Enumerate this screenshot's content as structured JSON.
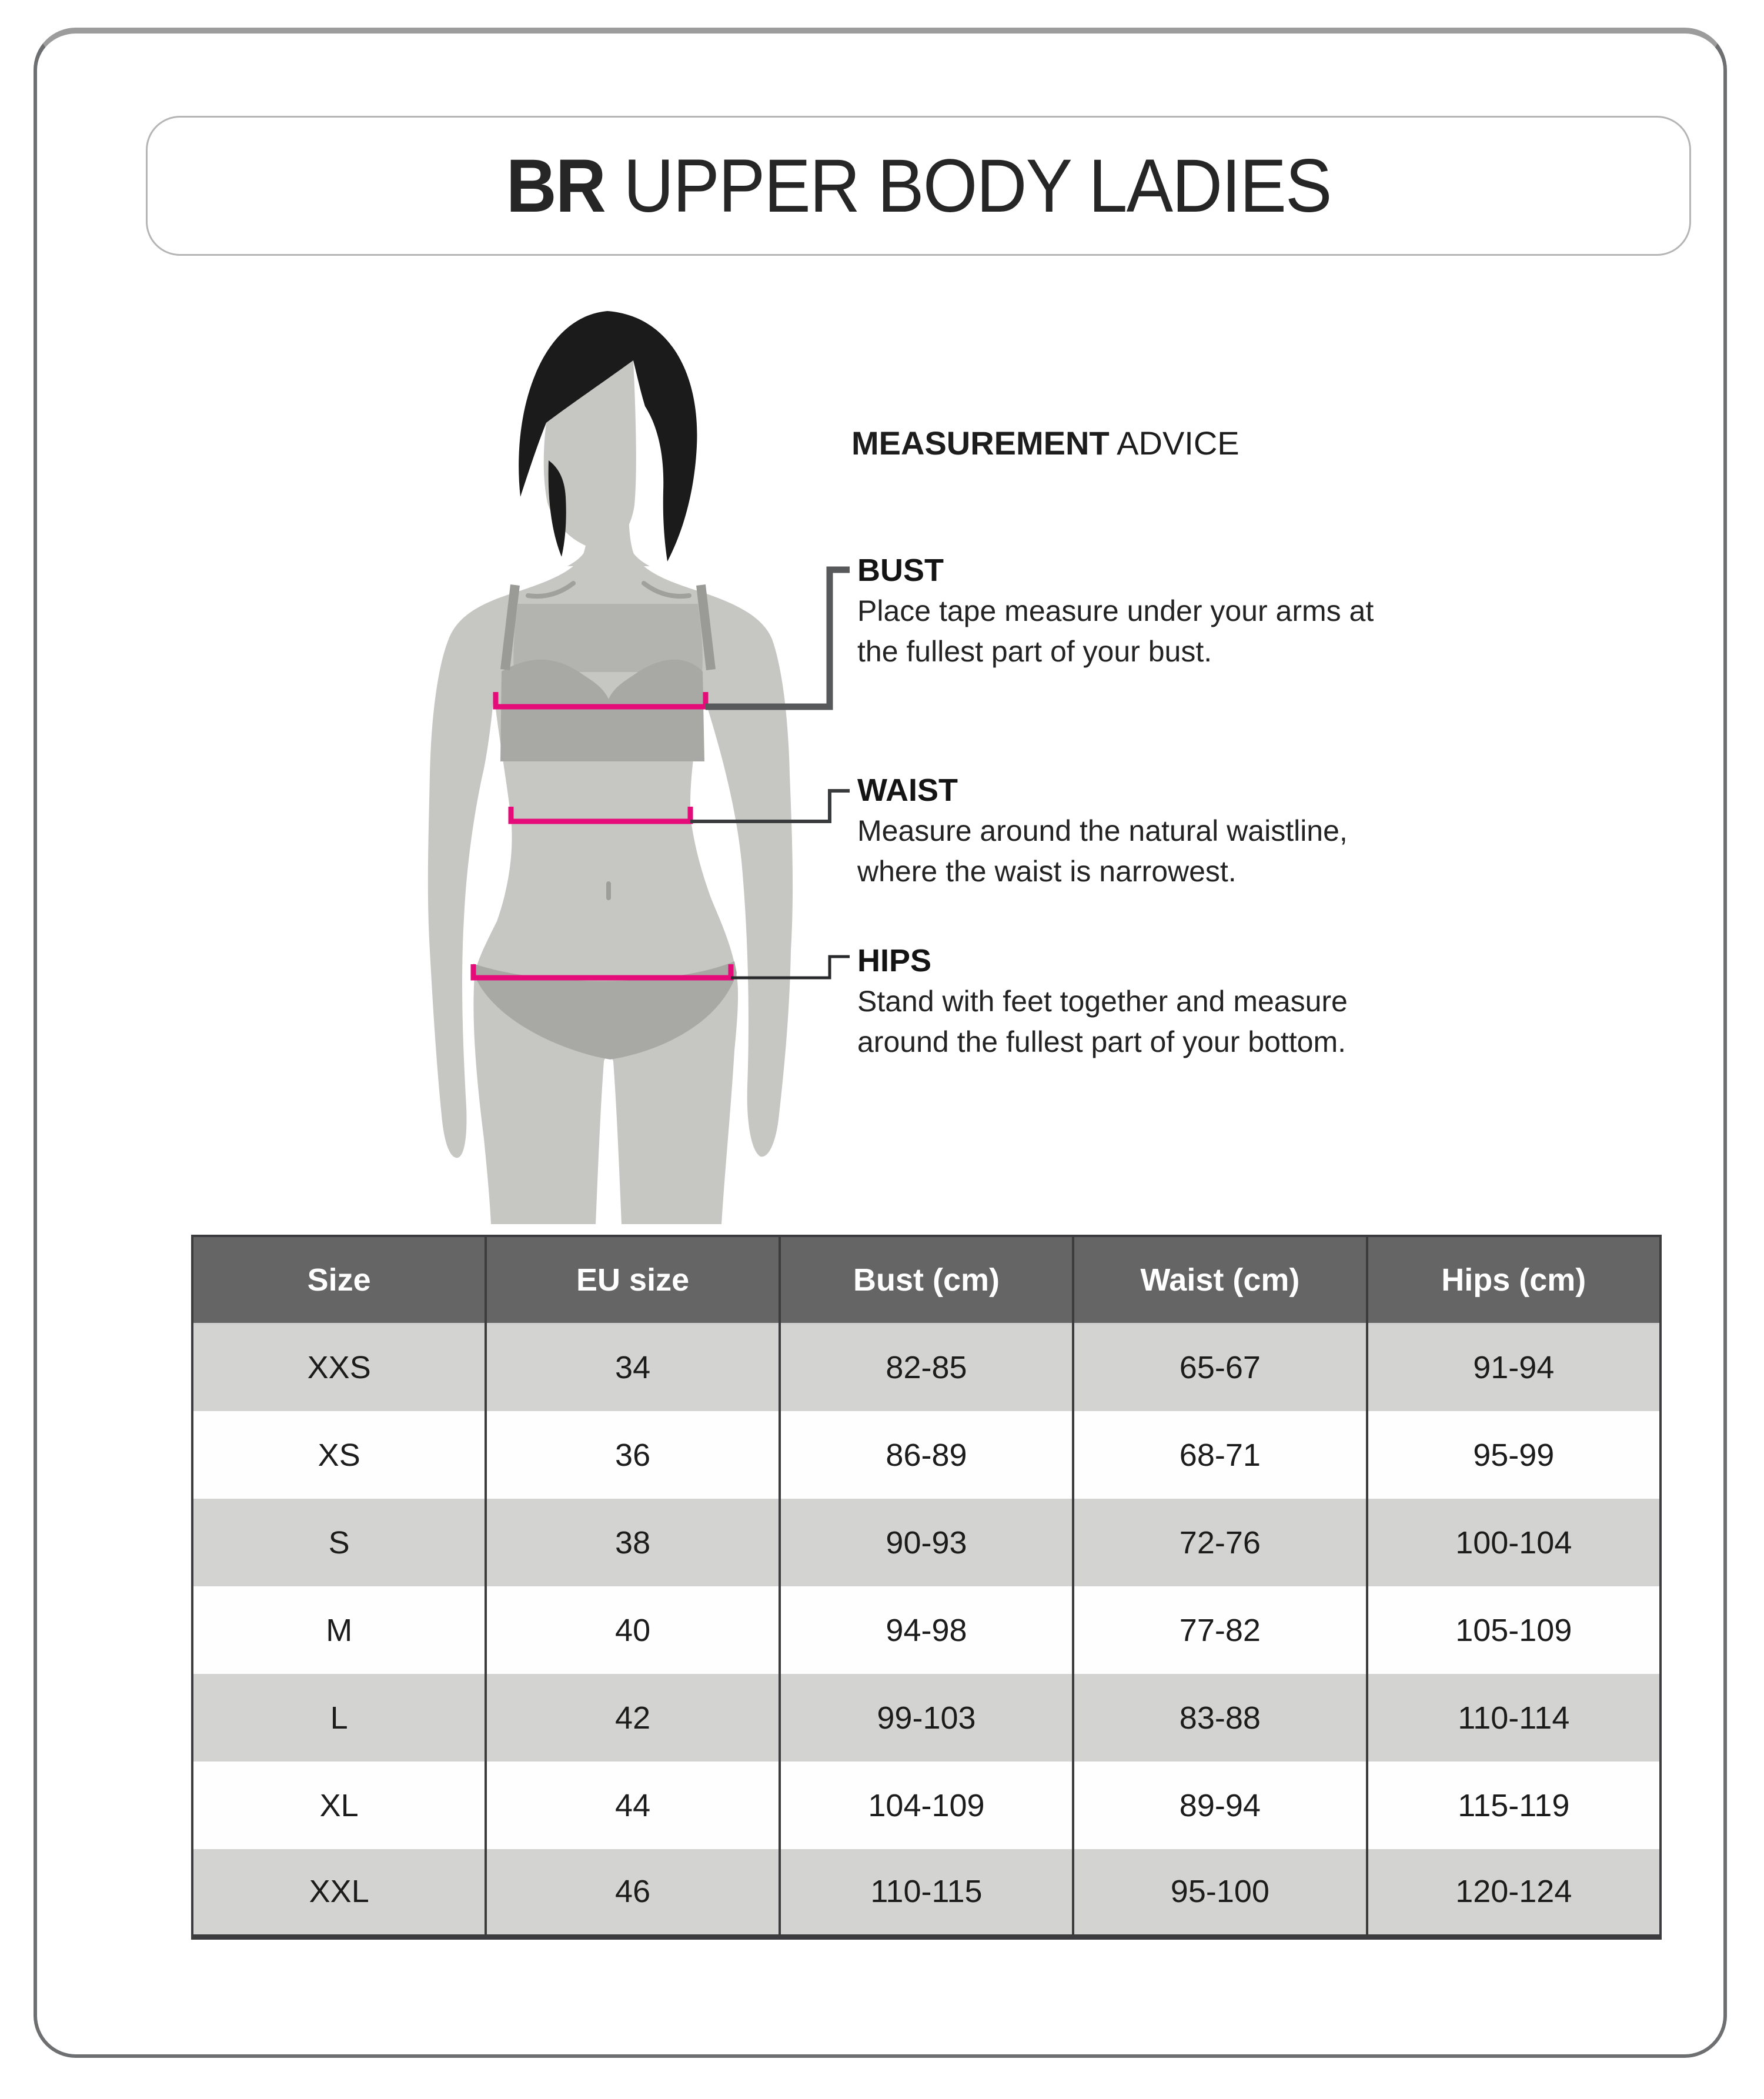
{
  "title": {
    "brand": "BR",
    "rest": " UPPER BODY LADIES"
  },
  "advice_heading": {
    "bold": "MEASUREMENT",
    "regular": " ADVICE"
  },
  "annotations": [
    {
      "id": "bust",
      "label": "BUST",
      "description": "Place tape measure under your arms at\nthe fullest part of your bust."
    },
    {
      "id": "waist",
      "label": "WAIST",
      "description": "Measure around the natural waistline,\nwhere the waist is narrowest."
    },
    {
      "id": "hips",
      "label": "HIPS",
      "description": "Stand with feet together and measure\naround the fullest part of your bottom."
    }
  ],
  "figure": {
    "description": "female-silhouette-with-measurement-lines",
    "measure_lines": [
      "bust",
      "waist",
      "hips"
    ]
  },
  "size_table": {
    "columns": [
      "Size",
      "EU size",
      "Bust (cm)",
      "Waist (cm)",
      "Hips (cm)"
    ],
    "rows": [
      [
        "XXS",
        "34",
        "82-85",
        "65-67",
        "91-94"
      ],
      [
        "XS",
        "36",
        "86-89",
        "68-71",
        "95-99"
      ],
      [
        "S",
        "38",
        "90-93",
        "72-76",
        "100-104"
      ],
      [
        "M",
        "40",
        "94-98",
        "77-82",
        "105-109"
      ],
      [
        "L",
        "42",
        "99-103",
        "83-88",
        "110-114"
      ],
      [
        "XL",
        "44",
        "104-109",
        "89-94",
        "115-119"
      ],
      [
        "XXL",
        "46",
        "110-115",
        "95-100",
        "120-124"
      ]
    ]
  },
  "colors": {
    "accent_pink": "#e50c7a",
    "body_gray": "#c6c7c3",
    "cloth_gray": "#a8a9a5",
    "chest_gray": "#b3b4b0",
    "strap_gray": "#9a9b97",
    "hair_black": "#1b1b1b",
    "header_bg": "#656565",
    "row_alt_bg": "#d3d4d2",
    "connector_gray": "#58595b"
  }
}
